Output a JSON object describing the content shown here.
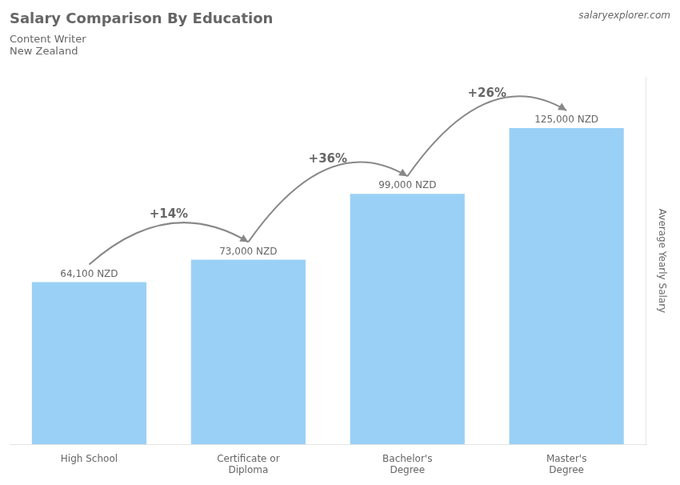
{
  "chart_data": {
    "type": "bar",
    "title": "Salary Comparison By Education",
    "subtitle": [
      "Content Writer",
      "New Zealand"
    ],
    "watermark": "salaryexplorer.com",
    "ylabel": "Average Yearly Salary",
    "categories": [
      "High School",
      "Certificate or\nDiploma",
      "Bachelor's\nDegree",
      "Master's\nDegree"
    ],
    "values": [
      64100,
      73000,
      99000,
      125000
    ],
    "value_labels": [
      "64,100 NZD",
      "73,000 NZD",
      "99,000 NZD",
      "125,000 NZD"
    ],
    "data_labels": true,
    "annotations": [
      "+14%",
      "+36%",
      "+26%"
    ],
    "ylim": [
      0,
      145000
    ],
    "grid": false,
    "tick_labels": "x"
  }
}
